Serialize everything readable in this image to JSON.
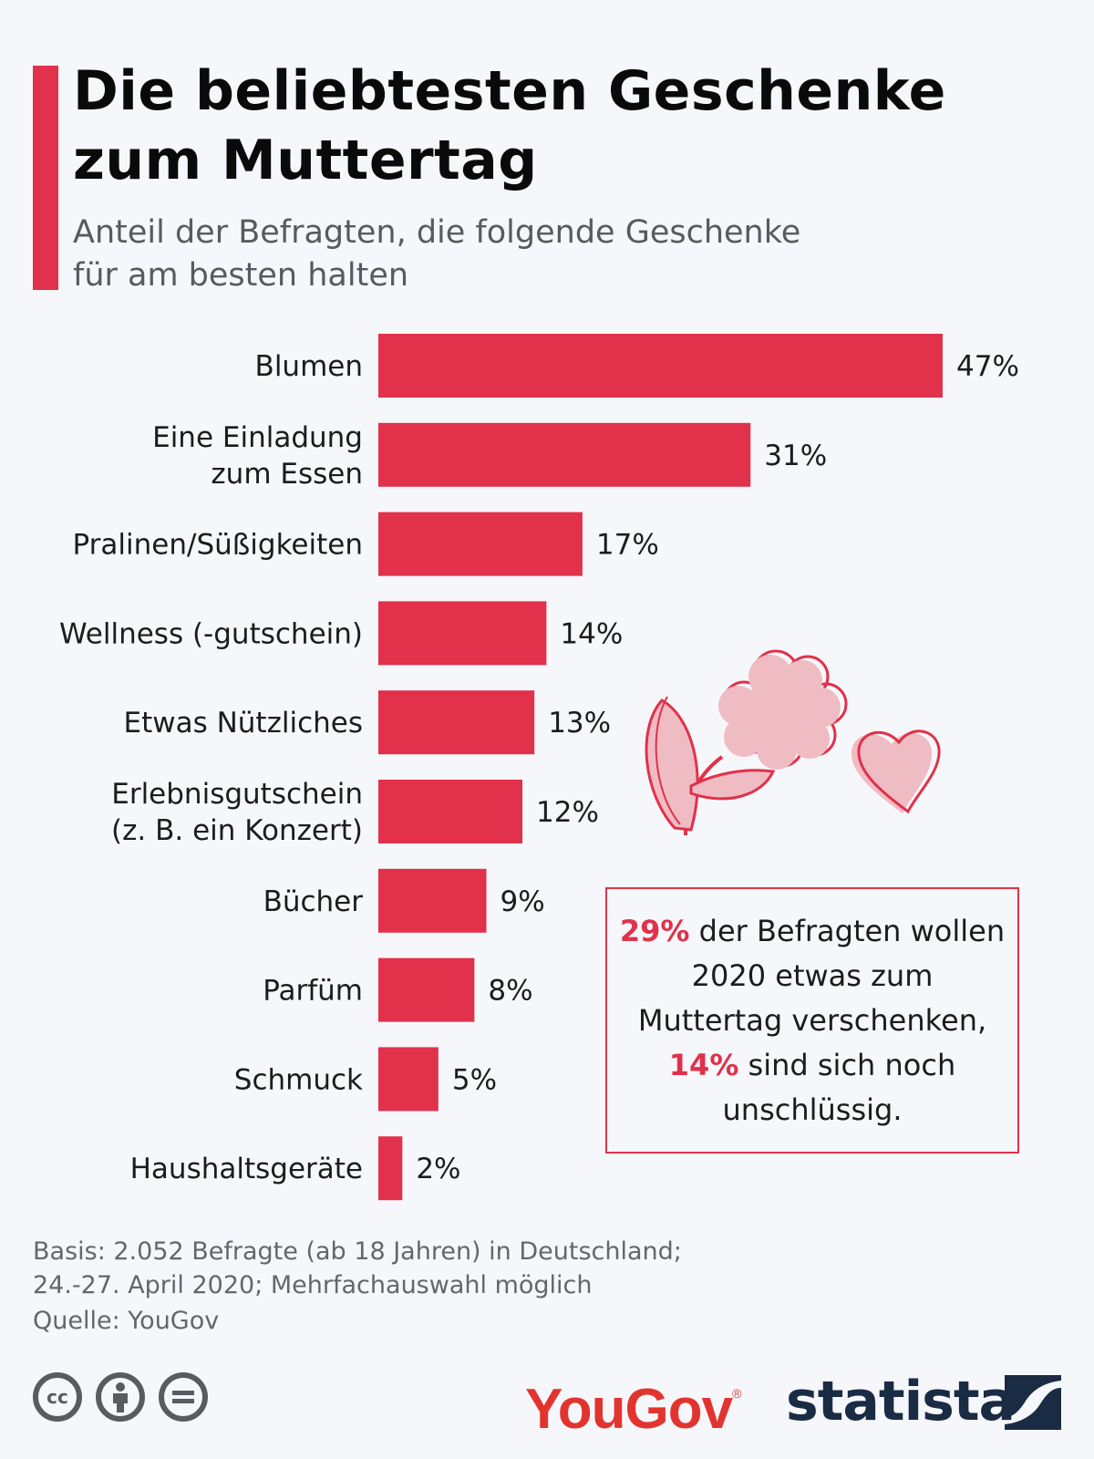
{
  "header": {
    "title_line1": "Die beliebtesten Geschenke",
    "title_line2": "zum Muttertag",
    "subtitle_line1": "Anteil der Befragten, die folgende Geschenke",
    "subtitle_line2": "für am besten halten"
  },
  "colors": {
    "accent": "#e1314b",
    "flower_fill": "#f0bcc4"
  },
  "chart_data": {
    "type": "bar",
    "orientation": "horizontal",
    "title": "Die beliebtesten Geschenke zum Muttertag",
    "subtitle": "Anteil der Befragten, die folgende Geschenke für am besten halten",
    "categories": [
      [
        "Blumen"
      ],
      [
        "Eine Einladung",
        "zum Essen"
      ],
      [
        "Pralinen/Süßigkeiten"
      ],
      [
        "Wellness (-gutschein)"
      ],
      [
        "Etwas Nützliches"
      ],
      [
        "Erlebnisgutschein",
        "(z. B. ein Konzert)"
      ],
      [
        "Bücher"
      ],
      [
        "Parfüm"
      ],
      [
        "Schmuck"
      ],
      [
        "Haushaltsgeräte"
      ]
    ],
    "values": [
      47,
      31,
      17,
      14,
      13,
      12,
      9,
      8,
      5,
      2
    ],
    "value_labels": [
      "47%",
      "31%",
      "17%",
      "14%",
      "13%",
      "12%",
      "9%",
      "8%",
      "5%",
      "2%"
    ],
    "unit": "%",
    "xlim": [
      0,
      47
    ],
    "grid": false,
    "legend": "none"
  },
  "callout": {
    "highlight1": "29%",
    "text1": " der Befragten wollen 2020 etwas zum Muttertag verschenken,",
    "highlight2": "14%",
    "text2": " sind sich noch unschlüssig."
  },
  "footer": {
    "basis_line1": "Basis: 2.052 Befragte (ab 18 Jahren) in Deutschland;",
    "basis_line2": "24.-27. April 2020; Mehrfachauswahl möglich",
    "source": "Quelle: YouGov",
    "licence_icons": [
      "cc-icon",
      "attribution-icon",
      "no-derivatives-icon"
    ],
    "cc_text": "cc",
    "yougov_logo": "YouGov",
    "yougov_reg": "®",
    "statista_logo": "statista"
  }
}
